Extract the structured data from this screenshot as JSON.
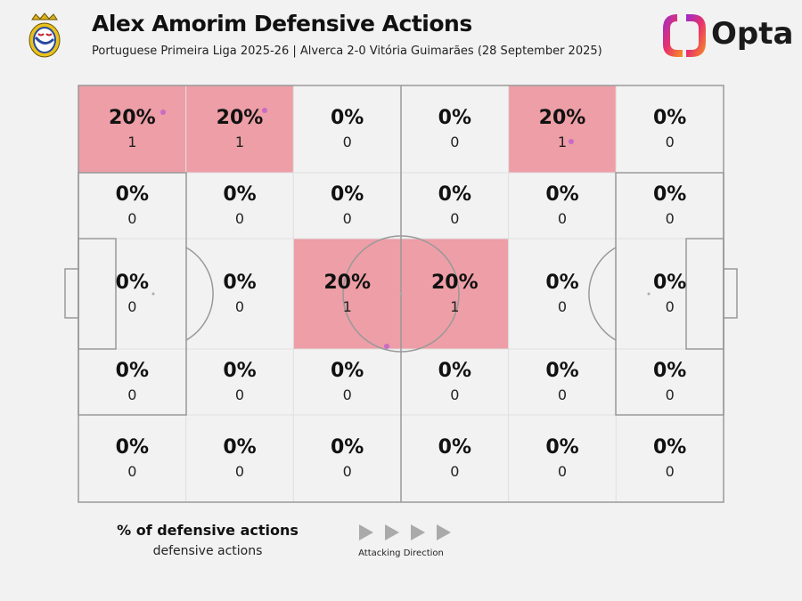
{
  "header": {
    "title": "Alex Amorim Defensive Actions",
    "subtitle": "Portuguese Primeira Liga 2025-26 | Alverca 2-0 Vitória Guimarães (28 September 2025)",
    "brand": "Opta"
  },
  "legend": {
    "title": "% of defensive actions",
    "subtitle": "defensive actions",
    "direction": "Attacking Direction"
  },
  "colors": {
    "highlight": "#ed9ea6",
    "empty": "#f2f2f2",
    "dot": "#c86cc6"
  },
  "chart_data": {
    "type": "heatmap",
    "title": "Alex Amorim Defensive Actions",
    "columns": 6,
    "rows": 5,
    "cells": [
      [
        {
          "pct": "20%",
          "count": "1"
        },
        {
          "pct": "20%",
          "count": "1"
        },
        {
          "pct": "0%",
          "count": "0"
        },
        {
          "pct": "0%",
          "count": "0"
        },
        {
          "pct": "20%",
          "count": "1"
        },
        {
          "pct": "0%",
          "count": "0"
        }
      ],
      [
        {
          "pct": "0%",
          "count": "0"
        },
        {
          "pct": "0%",
          "count": "0"
        },
        {
          "pct": "0%",
          "count": "0"
        },
        {
          "pct": "0%",
          "count": "0"
        },
        {
          "pct": "0%",
          "count": "0"
        },
        {
          "pct": "0%",
          "count": "0"
        }
      ],
      [
        {
          "pct": "0%",
          "count": "0"
        },
        {
          "pct": "0%",
          "count": "0"
        },
        {
          "pct": "20%",
          "count": "1"
        },
        {
          "pct": "20%",
          "count": "1"
        },
        {
          "pct": "0%",
          "count": "0"
        },
        {
          "pct": "0%",
          "count": "0"
        }
      ],
      [
        {
          "pct": "0%",
          "count": "0"
        },
        {
          "pct": "0%",
          "count": "0"
        },
        {
          "pct": "0%",
          "count": "0"
        },
        {
          "pct": "0%",
          "count": "0"
        },
        {
          "pct": "0%",
          "count": "0"
        },
        {
          "pct": "0%",
          "count": "0"
        }
      ],
      [
        {
          "pct": "0%",
          "count": "0"
        },
        {
          "pct": "0%",
          "count": "0"
        },
        {
          "pct": "0%",
          "count": "0"
        },
        {
          "pct": "0%",
          "count": "0"
        },
        {
          "pct": "0%",
          "count": "0"
        },
        {
          "pct": "0%",
          "count": "0"
        }
      ]
    ]
  }
}
